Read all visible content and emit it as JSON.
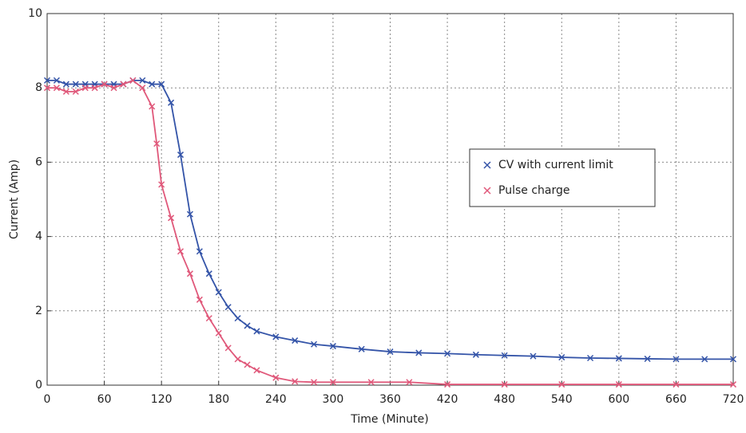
{
  "chart_data": {
    "type": "line",
    "xlabel": "Time (Minute)",
    "ylabel": "Current (Amp)",
    "xlim": [
      0,
      720
    ],
    "xticks": [
      0,
      60,
      120,
      180,
      240,
      300,
      360,
      420,
      480,
      540,
      600,
      660,
      720
    ],
    "ylim": [
      0,
      10
    ],
    "yticks": [
      0,
      2,
      4,
      6,
      8,
      10
    ],
    "grid": true,
    "legend": "right",
    "series": [
      {
        "name": "CV with current limit",
        "color": "#3454a8",
        "x": [
          0,
          10,
          20,
          30,
          40,
          50,
          60,
          70,
          80,
          90,
          100,
          110,
          120,
          130,
          140,
          150,
          160,
          170,
          180,
          190,
          200,
          210,
          220,
          240,
          260,
          280,
          300,
          330,
          360,
          390,
          420,
          450,
          480,
          510,
          540,
          570,
          600,
          630,
          660,
          690,
          720
        ],
        "values": [
          8.2,
          8.2,
          8.1,
          8.1,
          8.1,
          8.1,
          8.1,
          8.1,
          8.1,
          8.2,
          8.2,
          8.1,
          8.1,
          7.6,
          6.2,
          4.6,
          3.6,
          3.0,
          2.5,
          2.1,
          1.8,
          1.6,
          1.45,
          1.3,
          1.2,
          1.1,
          1.05,
          0.97,
          0.9,
          0.87,
          0.85,
          0.82,
          0.8,
          0.78,
          0.75,
          0.73,
          0.72,
          0.71,
          0.7,
          0.7,
          0.7
        ]
      },
      {
        "name": "Pulse charge",
        "color": "#e0587a",
        "x": [
          0,
          10,
          20,
          30,
          40,
          50,
          60,
          70,
          80,
          90,
          100,
          110,
          115,
          120,
          130,
          140,
          150,
          160,
          170,
          180,
          190,
          200,
          210,
          220,
          240,
          260,
          280,
          300,
          340,
          380,
          420,
          480,
          540,
          600,
          660,
          720
        ],
        "values": [
          8.0,
          8.0,
          7.9,
          7.9,
          8.0,
          8.0,
          8.1,
          8.0,
          8.1,
          8.2,
          8.0,
          7.5,
          6.5,
          5.4,
          4.5,
          3.6,
          3.0,
          2.3,
          1.8,
          1.4,
          1.0,
          0.7,
          0.55,
          0.4,
          0.2,
          0.1,
          0.08,
          0.08,
          0.08,
          0.08,
          0.02,
          0.02,
          0.02,
          0.02,
          0.02,
          0.02
        ]
      }
    ]
  }
}
